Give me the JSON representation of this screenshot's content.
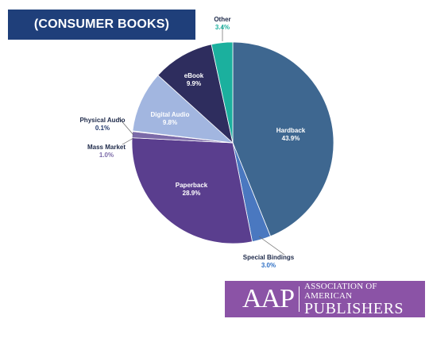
{
  "banner": {
    "title": "(CONSUMER BOOKS)"
  },
  "logo": {
    "mark": "AAP",
    "line1": "ASSOCIATION OF AMERICAN",
    "line2": "PUBLISHERS"
  },
  "chart_data": {
    "type": "pie",
    "title": "(CONSUMER BOOKS)",
    "slices": [
      {
        "name": "Hardback",
        "label": "43.9%",
        "value": 43.9,
        "color": "#3e6790",
        "label_color": "#ffffff"
      },
      {
        "name": "Special Bindings",
        "label": "3.0%",
        "value": 3.0,
        "color": "#4a78c0",
        "label_color": "#2d6fc4"
      },
      {
        "name": "Paperback",
        "label": "28.9%",
        "value": 28.9,
        "color": "#5a3e8e",
        "label_color": "#ffffff"
      },
      {
        "name": "Mass Market",
        "label": "1.0%",
        "value": 1.0,
        "color": "#7b6aa8",
        "label_color": "#7b6aa8"
      },
      {
        "name": "Physical Audio",
        "label": "0.1%",
        "value": 0.1,
        "color": "#233a6e",
        "label_color": "#233a6e"
      },
      {
        "name": "Digital Audio",
        "label": "9.8%",
        "value": 9.8,
        "color": "#a2b6e0",
        "label_color": "#ffffff"
      },
      {
        "name": "eBook",
        "label": "9.9%",
        "value": 9.9,
        "color": "#2e2d5e",
        "label_color": "#ffffff"
      },
      {
        "name": "Other",
        "label": "3.4%",
        "value": 3.4,
        "color": "#1bb09e",
        "label_color": "#1bb09e"
      }
    ]
  }
}
